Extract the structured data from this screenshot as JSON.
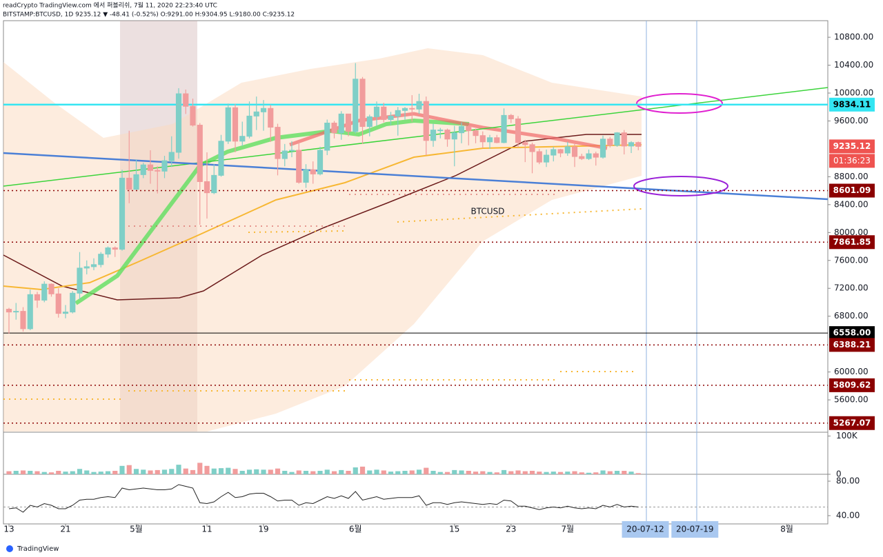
{
  "header": {
    "publish": "readCrypto TradingView.com 에서 퍼블리쉬, 7월 11, 2020 22:23:40 UTC",
    "symbol": "BITSTAMP:BTCUSD, 1D 9235.12 ▼ -48.41 (-0.52%) O:9291.00 H:9304.95 L:9180.00 C:9235.12"
  },
  "annotation": "BTCUSD",
  "footer": "TradingView",
  "chart_data": [
    {
      "type": "candlestick",
      "up_color": "#7fcfc7",
      "down_color": "#f19c9c",
      "ohlc": [
        [
          6900,
          6920,
          6550,
          6860
        ],
        [
          6860,
          6990,
          6750,
          6870
        ],
        [
          6870,
          6930,
          6580,
          6620
        ],
        [
          6620,
          7180,
          6600,
          7110
        ],
        [
          7110,
          7150,
          6920,
          7030
        ],
        [
          7030,
          7300,
          7000,
          7260
        ],
        [
          7260,
          7270,
          7080,
          7120
        ],
        [
          7120,
          7200,
          6780,
          6840
        ],
        [
          6840,
          6960,
          6770,
          6860
        ],
        [
          6860,
          7160,
          6840,
          7130
        ],
        [
          7130,
          7720,
          7040,
          7490
        ],
        [
          7490,
          7600,
          7400,
          7510
        ],
        [
          7510,
          7630,
          7460,
          7540
        ],
        [
          7540,
          7720,
          7500,
          7690
        ],
        [
          7690,
          7800,
          7640,
          7780
        ],
        [
          7780,
          7800,
          7650,
          7760
        ],
        [
          7760,
          8900,
          7740,
          8780
        ],
        [
          8780,
          9460,
          8420,
          8620
        ],
        [
          8620,
          9050,
          8610,
          8830
        ],
        [
          8830,
          9000,
          8780,
          8970
        ],
        [
          8970,
          9180,
          8700,
          8890
        ],
        [
          8890,
          8950,
          8560,
          8880
        ],
        [
          8880,
          9100,
          8780,
          9030
        ],
        [
          9030,
          9380,
          8940,
          9150
        ],
        [
          9150,
          10070,
          9060,
          9990
        ],
        [
          9990,
          10050,
          9700,
          9810
        ],
        [
          9810,
          9920,
          9520,
          9540
        ],
        [
          9540,
          9570,
          8110,
          8730
        ],
        [
          8730,
          9150,
          8200,
          8570
        ],
        [
          8570,
          8980,
          8550,
          8820
        ],
        [
          8820,
          9400,
          8800,
          9310
        ],
        [
          9310,
          9850,
          9270,
          9790
        ],
        [
          9790,
          9840,
          9150,
          9310
        ],
        [
          9310,
          9590,
          9240,
          9380
        ],
        [
          9380,
          9880,
          9350,
          9670
        ],
        [
          9670,
          9950,
          9470,
          9730
        ],
        [
          9730,
          9900,
          9460,
          9780
        ],
        [
          9780,
          9830,
          9300,
          9510
        ],
        [
          9510,
          9560,
          8820,
          9060
        ],
        [
          9060,
          9270,
          8950,
          9170
        ],
        [
          9170,
          9310,
          9080,
          9180
        ],
        [
          9180,
          9300,
          8700,
          8720
        ],
        [
          8720,
          8980,
          8640,
          8900
        ],
        [
          8900,
          9020,
          8700,
          8840
        ],
        [
          8840,
          9230,
          8820,
          9180
        ],
        [
          9180,
          9620,
          9110,
          9570
        ],
        [
          9570,
          9600,
          9350,
          9430
        ],
        [
          9430,
          9740,
          9330,
          9700
        ],
        [
          9700,
          9700,
          9380,
          9450
        ],
        [
          9450,
          10430,
          9420,
          10200
        ],
        [
          10200,
          10230,
          9270,
          9520
        ],
        [
          9520,
          9690,
          9380,
          9660
        ],
        [
          9660,
          9880,
          9530,
          9800
        ],
        [
          9800,
          9860,
          9580,
          9620
        ],
        [
          9620,
          9730,
          9540,
          9670
        ],
        [
          9670,
          9800,
          9390,
          9750
        ],
        [
          9750,
          9800,
          9620,
          9780
        ],
        [
          9780,
          9970,
          9590,
          9770
        ],
        [
          9770,
          9990,
          9700,
          9880
        ],
        [
          9880,
          9950,
          9110,
          9320
        ],
        [
          9320,
          9560,
          9230,
          9470
        ],
        [
          9470,
          9500,
          9350,
          9470
        ],
        [
          9470,
          9490,
          9230,
          9340
        ],
        [
          9340,
          9530,
          8950,
          9430
        ],
        [
          9430,
          9580,
          9280,
          9520
        ],
        [
          9520,
          9540,
          9250,
          9460
        ],
        [
          9460,
          9490,
          9280,
          9390
        ],
        [
          9390,
          9450,
          9210,
          9300
        ],
        [
          9300,
          9400,
          9200,
          9360
        ],
        [
          9360,
          9400,
          9280,
          9290
        ],
        [
          9290,
          9780,
          9280,
          9680
        ],
        [
          9680,
          9700,
          9570,
          9630
        ],
        [
          9630,
          9670,
          9220,
          9290
        ],
        [
          9290,
          9330,
          9010,
          9260
        ],
        [
          9260,
          9290,
          8850,
          9160
        ],
        [
          9160,
          9200,
          8980,
          9010
        ],
        [
          9010,
          9190,
          8940,
          9110
        ],
        [
          9110,
          9230,
          9020,
          9190
        ],
        [
          9190,
          9200,
          9080,
          9140
        ],
        [
          9140,
          9300,
          9100,
          9230
        ],
        [
          9230,
          9270,
          8940,
          9090
        ],
        [
          9090,
          9130,
          9040,
          9060
        ],
        [
          9060,
          9190,
          9040,
          9130
        ],
        [
          9130,
          9160,
          8960,
          9080
        ],
        [
          9080,
          9390,
          9060,
          9340
        ],
        [
          9340,
          9370,
          9220,
          9250
        ],
        [
          9250,
          9440,
          9230,
          9430
        ],
        [
          9430,
          9470,
          9120,
          9240
        ],
        [
          9240,
          9310,
          9140,
          9290
        ],
        [
          9291,
          9304.95,
          9180,
          9235.12
        ]
      ],
      "xlim": [
        -0.78,
        115.8
      ],
      "xticks": [
        {
          "value": 0,
          "label": "13"
        },
        {
          "value": 8,
          "label": "21"
        },
        {
          "value": 18,
          "label": "5월"
        },
        {
          "value": 28,
          "label": "11"
        },
        {
          "value": 36,
          "label": "19"
        },
        {
          "value": 49,
          "label": "6월"
        },
        {
          "value": 63,
          "label": "15"
        },
        {
          "value": 71,
          "label": "23"
        },
        {
          "value": 79,
          "label": "7월"
        },
        {
          "value": 90,
          "label": "20-07-12",
          "highlight": true
        },
        {
          "value": 97,
          "label": "20-07-19",
          "highlight": true
        },
        {
          "value": 110,
          "label": "8월"
        }
      ],
      "ylim": [
        5146,
        11038
      ],
      "yticks": [
        {
          "value": 10800,
          "label": "10800.00"
        },
        {
          "value": 10400,
          "label": "10400.00"
        },
        {
          "value": 10000,
          "label": "10000.00"
        },
        {
          "value": 9600,
          "label": "9600.00"
        },
        {
          "value": 8800,
          "label": "8800.00"
        },
        {
          "value": 8400,
          "label": "8400.00"
        },
        {
          "value": 8000,
          "label": "8000.00"
        },
        {
          "value": 7600,
          "label": "7600.00"
        },
        {
          "value": 7200,
          "label": "7200.00"
        },
        {
          "value": 6800,
          "label": "6800.00"
        },
        {
          "value": 6000,
          "label": "6000.00"
        },
        {
          "value": 5600,
          "label": "5600.00"
        }
      ],
      "levels": [
        {
          "value": 9834.11,
          "label": "9834.11",
          "color": "#33e5f2",
          "text_color": "#000000",
          "line": "solid"
        },
        {
          "value": 9235.12,
          "label": "9235.12",
          "color": "#ef5350",
          "text_color": "#ffffff",
          "line": "none"
        },
        {
          "value": 8601.09,
          "label": "8601.09",
          "color": "#8b0000",
          "text_color": "#ffffff",
          "line": "dotted"
        },
        {
          "value": 7861.85,
          "label": "7861.85",
          "color": "#8b0000",
          "text_color": "#ffffff",
          "line": "dotted"
        },
        {
          "value": 6558,
          "label": "6558.00",
          "color": "#000000",
          "text_color": "#ffffff",
          "line": "solid"
        },
        {
          "value": 6388.21,
          "label": "6388.21",
          "color": "#8b0000",
          "text_color": "#ffffff",
          "line": "dotted"
        },
        {
          "value": 5809.62,
          "label": "5809.62",
          "color": "#8b0000",
          "text_color": "#ffffff",
          "line": "dotted"
        },
        {
          "value": 5267.07,
          "label": "5267.07",
          "color": "#8b0000",
          "text_color": "#ffffff",
          "line": "dotted"
        }
      ],
      "countdown": "01:36:23"
    },
    {
      "type": "bar",
      "values": [
        8,
        9,
        10,
        9,
        8,
        6,
        5,
        9,
        7,
        8,
        14,
        10,
        6,
        7,
        8,
        9,
        22,
        24,
        14,
        12,
        10,
        11,
        12,
        14,
        25,
        15,
        11,
        30,
        22,
        15,
        16,
        17,
        14,
        9,
        12,
        13,
        12,
        12,
        15,
        9,
        6,
        10,
        9,
        8,
        9,
        12,
        8,
        11,
        9,
        18,
        20,
        10,
        12,
        10,
        7,
        8,
        9,
        10,
        12,
        17,
        9,
        6,
        6,
        11,
        10,
        9,
        7,
        8,
        6,
        5,
        11,
        8,
        10,
        8,
        9,
        7,
        6,
        7,
        6,
        7,
        8,
        5,
        4,
        5,
        10,
        8,
        9,
        9,
        7,
        3
      ],
      "ylim": [
        0,
        110
      ],
      "yticks": [
        {
          "value": 100,
          "label": "100K"
        },
        0
      ]
    },
    {
      "type": "line",
      "color": "#222222",
      "values": [
        48,
        49,
        44,
        52,
        50,
        54,
        52,
        48,
        48,
        52,
        58,
        59,
        59,
        61,
        62,
        61,
        72,
        70,
        71,
        72,
        71,
        70,
        70,
        71,
        76,
        74,
        72,
        55,
        54,
        56,
        62,
        67,
        61,
        62,
        65,
        66,
        66,
        62,
        57,
        58,
        58,
        52,
        55,
        54,
        58,
        62,
        60,
        63,
        60,
        68,
        58,
        60,
        62,
        59,
        60,
        61,
        61,
        61,
        63,
        52,
        55,
        55,
        53,
        55,
        56,
        55,
        54,
        53,
        54,
        53,
        58,
        57,
        51,
        51,
        49,
        47,
        49,
        50,
        49,
        51,
        49,
        48,
        49,
        48,
        52,
        50,
        53,
        50,
        51,
        50
      ],
      "ylim": [
        30.4,
        88
      ],
      "yticks": [
        {
          "value": 80,
          "label": "80.00"
        },
        {
          "value": 40,
          "label": "40.00"
        }
      ]
    }
  ]
}
